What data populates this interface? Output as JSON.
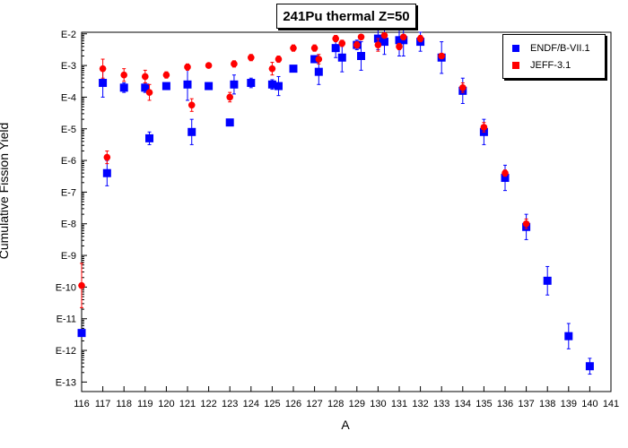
{
  "chart_data": {
    "type": "scatter",
    "title": "241Pu thermal Z=50",
    "xlabel": "A",
    "ylabel": "Cumulative Fission Yield",
    "xlim": [
      116,
      141
    ],
    "ylim_exp": [
      -13.3,
      -1.95
    ],
    "y_scale": "log",
    "x_ticks": [
      116,
      117,
      118,
      119,
      120,
      121,
      122,
      123,
      124,
      125,
      126,
      127,
      128,
      129,
      130,
      131,
      132,
      133,
      134,
      135,
      136,
      137,
      138,
      139,
      140,
      141
    ],
    "y_ticks": [
      {
        "exp": -2,
        "label": "E-2"
      },
      {
        "exp": -3,
        "label": "E-3"
      },
      {
        "exp": -4,
        "label": "E-4"
      },
      {
        "exp": -5,
        "label": "E-5"
      },
      {
        "exp": -6,
        "label": "E-6"
      },
      {
        "exp": -7,
        "label": "E-7"
      },
      {
        "exp": -8,
        "label": "E-8"
      },
      {
        "exp": -9,
        "label": "E-9"
      },
      {
        "exp": -10,
        "label": "E-10"
      },
      {
        "exp": -11,
        "label": "E-11"
      },
      {
        "exp": -12,
        "label": "E-12"
      },
      {
        "exp": -13,
        "label": "E-13"
      }
    ],
    "grid": false,
    "legend": "top-right",
    "series": [
      {
        "name": "ENDF/B-VII.1",
        "color": "#0000ff",
        "marker": "square",
        "points": [
          {
            "x": 116,
            "y": -11.45,
            "e": 0
          },
          {
            "x": 117,
            "y": -3.55,
            "e": 0.45
          },
          {
            "x": 117.2,
            "y": -6.4,
            "e": 0.4
          },
          {
            "x": 118,
            "y": -3.7,
            "e": 0.15
          },
          {
            "x": 119,
            "y": -3.7,
            "e": 0.15
          },
          {
            "x": 119.2,
            "y": -5.3,
            "e": 0.2
          },
          {
            "x": 120,
            "y": -3.65,
            "e": 0.1
          },
          {
            "x": 121,
            "y": -3.6,
            "e": 0.5
          },
          {
            "x": 121.2,
            "y": -5.1,
            "e": 0.4
          },
          {
            "x": 122,
            "y": -3.65,
            "e": 0.1
          },
          {
            "x": 123,
            "y": -4.8,
            "e": 0
          },
          {
            "x": 123.2,
            "y": -3.6,
            "e": 0.3
          },
          {
            "x": 124,
            "y": -3.55,
            "e": 0.15
          },
          {
            "x": 125,
            "y": -3.6,
            "e": 0.15
          },
          {
            "x": 125.3,
            "y": -3.65,
            "e": 0.3
          },
          {
            "x": 126,
            "y": -3.1,
            "e": 0.1
          },
          {
            "x": 127,
            "y": -2.8,
            "e": 0.1
          },
          {
            "x": 127.2,
            "y": -3.2,
            "e": 0.4
          },
          {
            "x": 128,
            "y": -2.45,
            "e": 0.3
          },
          {
            "x": 128.3,
            "y": -2.75,
            "e": 0.45
          },
          {
            "x": 129,
            "y": -2.35,
            "e": 0.15
          },
          {
            "x": 129.2,
            "y": -2.7,
            "e": 0.45
          },
          {
            "x": 130,
            "y": -2.15,
            "e": 0.35
          },
          {
            "x": 130.3,
            "y": -2.25,
            "e": 0.4
          },
          {
            "x": 131,
            "y": -2.2,
            "e": 0.5
          },
          {
            "x": 131.2,
            "y": -2.2,
            "e": 0.5
          },
          {
            "x": 132,
            "y": -2.25,
            "e": 0.3
          },
          {
            "x": 133,
            "y": -2.75,
            "e": 0.5
          },
          {
            "x": 134,
            "y": -3.8,
            "e": 0.4
          },
          {
            "x": 135,
            "y": -5.1,
            "e": 0.4
          },
          {
            "x": 136,
            "y": -6.55,
            "e": 0.4
          },
          {
            "x": 137,
            "y": -8.1,
            "e": 0.4
          },
          {
            "x": 138,
            "y": -9.8,
            "e": 0.45
          },
          {
            "x": 139,
            "y": -11.55,
            "e": 0.4
          },
          {
            "x": 140,
            "y": -12.5,
            "e": 0.25
          }
        ]
      },
      {
        "name": "JEFF-3.1",
        "color": "#ff0000",
        "marker": "circle",
        "points": [
          {
            "x": 116,
            "y": -9.95,
            "e": 0.7
          },
          {
            "x": 117,
            "y": -3.1,
            "e": 0.3
          },
          {
            "x": 117.2,
            "y": -5.9,
            "e": 0.2
          },
          {
            "x": 118,
            "y": -3.3,
            "e": 0.2
          },
          {
            "x": 119,
            "y": -3.35,
            "e": 0.2
          },
          {
            "x": 119.2,
            "y": -3.85,
            "e": 0.25
          },
          {
            "x": 120,
            "y": -3.3,
            "e": 0.1
          },
          {
            "x": 121,
            "y": -3.05,
            "e": 0.1
          },
          {
            "x": 121.2,
            "y": -4.25,
            "e": 0.2
          },
          {
            "x": 122,
            "y": -3.0,
            "e": 0.05
          },
          {
            "x": 123,
            "y": -4.0,
            "e": 0.15
          },
          {
            "x": 123.2,
            "y": -2.95,
            "e": 0.1
          },
          {
            "x": 124,
            "y": -2.75,
            "e": 0.1
          },
          {
            "x": 125,
            "y": -3.1,
            "e": 0.2
          },
          {
            "x": 125.3,
            "y": -2.8,
            "e": 0.1
          },
          {
            "x": 126,
            "y": -2.45,
            "e": 0.1
          },
          {
            "x": 127,
            "y": -2.45,
            "e": 0.1
          },
          {
            "x": 127.2,
            "y": -2.8,
            "e": 0.15
          },
          {
            "x": 128,
            "y": -2.15,
            "e": 0.1
          },
          {
            "x": 128.3,
            "y": -2.3,
            "e": 0.1
          },
          {
            "x": 129,
            "y": -2.35,
            "e": 0.1
          },
          {
            "x": 129.2,
            "y": -2.1,
            "e": 0.05
          },
          {
            "x": 130,
            "y": -2.35,
            "e": 0.2
          },
          {
            "x": 130.3,
            "y": -2.05,
            "e": 0.05
          },
          {
            "x": 131,
            "y": -2.4,
            "e": 0.1
          },
          {
            "x": 131.2,
            "y": -2.1,
            "e": 0.05
          },
          {
            "x": 132,
            "y": -2.15,
            "e": 0.1
          },
          {
            "x": 133,
            "y": -2.7,
            "e": 0.05
          },
          {
            "x": 134,
            "y": -3.7,
            "e": 0.15
          },
          {
            "x": 135,
            "y": -4.95,
            "e": 0.15
          },
          {
            "x": 136,
            "y": -6.4,
            "e": 0.1
          },
          {
            "x": 137,
            "y": -8.0,
            "e": 0.15
          }
        ]
      }
    ]
  }
}
